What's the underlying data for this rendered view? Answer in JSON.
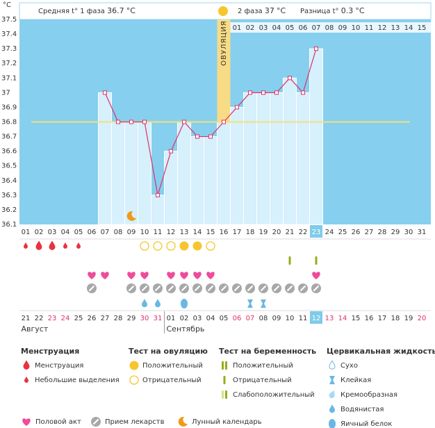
{
  "chart_data": {
    "type": "bbt",
    "y_label": "°C",
    "phase1_label": "Средняя t° 1 фаза",
    "phase1_value": 36.7,
    "phase2_label": "2 фаза",
    "phase2_value": 37.0,
    "diff_label": "Разница t°",
    "diff_value": 0.3,
    "categories": [
      "01",
      "02",
      "03",
      "04",
      "05",
      "06",
      "07",
      "08",
      "09",
      "10",
      "11",
      "12",
      "13",
      "14",
      "15",
      "16",
      "17",
      "18",
      "19",
      "20",
      "21",
      "22",
      "23",
      "24",
      "25",
      "26",
      "27",
      "28",
      "29",
      "30",
      "31"
    ],
    "values": [
      null,
      null,
      null,
      null,
      null,
      null,
      37.0,
      36.8,
      36.8,
      36.8,
      36.3,
      36.6,
      36.8,
      36.7,
      36.7,
      36.8,
      36.9,
      37.0,
      37.0,
      37.0,
      37.1,
      37.0,
      37.3,
      null,
      null,
      null,
      null,
      null,
      null,
      null,
      null
    ],
    "color": "#e0306a",
    "ylim": [
      36.1,
      37.5
    ],
    "yticks": [
      37.5,
      37.4,
      37.3,
      37.2,
      37.1,
      37,
      36.9,
      36.8,
      36.7,
      36.6,
      36.5,
      36.4,
      36.3,
      36.2,
      36.1
    ],
    "coverline": 36.8,
    "coverline_color": "#f3e07a",
    "ovulation_day": "16",
    "ovulation_label": "ОВУЛЯЦИЯ",
    "phase2_days": [
      "01",
      "02",
      "03",
      "04",
      "05",
      "06",
      "07",
      "08",
      "09",
      "10",
      "11",
      "12",
      "13",
      "14",
      "15"
    ],
    "today": "23",
    "dates": [
      "21",
      "22",
      "23",
      "24",
      "25",
      "26",
      "27",
      "28",
      "29",
      "30",
      "31",
      "01",
      "02",
      "03",
      "04",
      "05",
      "06",
      "07",
      "08",
      "09",
      "10",
      "11",
      "12",
      "13",
      "14",
      "15",
      "16",
      "17",
      "18",
      "19",
      "20"
    ],
    "weekend_dates": [
      "23",
      "24",
      "30",
      "31",
      "06",
      "07",
      "13",
      "14",
      "20"
    ],
    "weekend_color": "#e0306a",
    "months": [
      {
        "label": "Август",
        "from": "21"
      },
      {
        "label": "Сентябрь",
        "from": "01"
      }
    ],
    "legend": [
      {
        "title": "Менструация",
        "items": [
          {
            "label": "Менструация",
            "days": [
              "02",
              "03"
            ]
          },
          {
            "label": "Небольшие выделения",
            "days": [
              "01",
              "04",
              "05"
            ]
          }
        ]
      },
      {
        "title": "Тест на овуляцию",
        "items": [
          {
            "label": "Положительный",
            "days": [
              "13",
              "14"
            ]
          },
          {
            "label": "Отрицательный",
            "days": [
              "10",
              "11",
              "12",
              "15"
            ]
          }
        ]
      },
      {
        "title": "Тест на беременность",
        "items": [
          {
            "label": "Положительный",
            "days": []
          },
          {
            "label": "Отрицательный",
            "days": [
              "21",
              "23"
            ]
          },
          {
            "label": "Слабоположительный",
            "days": []
          }
        ]
      },
      {
        "title": "Цервикальная жидкость",
        "items": [
          {
            "label": "Сухо",
            "days": []
          },
          {
            "label": "Клейкая",
            "days": [
              "18",
              "19"
            ]
          },
          {
            "label": "Кремообразная",
            "days": []
          },
          {
            "label": "Водянистая",
            "days": [
              "10",
              "11"
            ]
          },
          {
            "label": "Яичный белок",
            "days": [
              "13"
            ]
          }
        ]
      }
    ],
    "extras": [
      {
        "label": "Половой акт",
        "days": [
          "06",
          "07",
          "09",
          "10",
          "12",
          "13",
          "14",
          "15",
          "23"
        ]
      },
      {
        "label": "Прием лекарств",
        "days": [
          "06",
          "09",
          "10",
          "11",
          "12",
          "13",
          "14",
          "15",
          "16",
          "17",
          "18",
          "19",
          "20",
          "21",
          "22",
          "23"
        ]
      },
      {
        "label": "Лунный календарь",
        "days": [
          "09"
        ]
      }
    ]
  }
}
